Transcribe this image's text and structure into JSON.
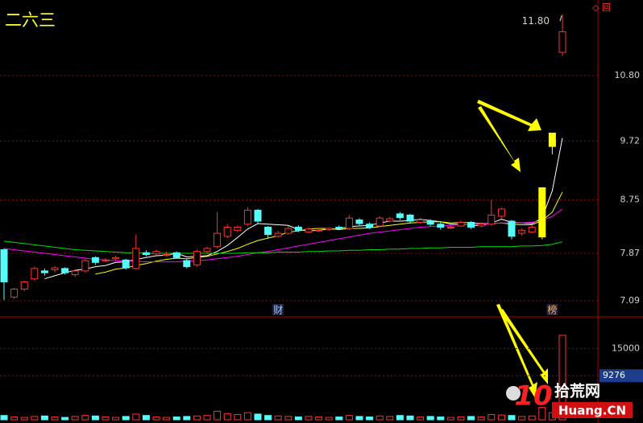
{
  "chart_data": [
    {
      "type": "candlestick",
      "title": "二六三",
      "open": [
        7.93,
        7.15,
        7.28,
        7.45,
        7.58,
        7.6,
        7.62,
        7.52,
        7.58,
        7.8,
        7.75,
        7.78,
        7.76,
        7.62,
        7.88,
        7.86,
        7.85,
        7.88,
        7.75,
        7.68,
        7.9,
        7.98,
        8.15,
        8.25,
        8.35,
        8.58,
        8.3,
        8.15,
        8.2,
        8.3,
        8.22,
        8.25,
        8.26,
        8.3,
        8.28,
        8.42,
        8.35,
        8.32,
        8.4,
        8.52,
        8.5,
        8.38,
        8.4,
        8.35,
        8.3,
        8.32,
        8.38,
        8.32,
        8.35,
        8.48,
        8.4,
        8.2,
        8.22,
        8.14,
        9.63,
        11.18
      ],
      "high": [
        7.95,
        7.3,
        7.42,
        7.65,
        7.62,
        7.66,
        7.64,
        7.6,
        7.78,
        7.82,
        7.79,
        7.83,
        7.78,
        8.18,
        7.92,
        7.93,
        7.9,
        7.9,
        7.78,
        7.93,
        7.98,
        8.55,
        8.35,
        8.33,
        8.63,
        8.6,
        8.32,
        8.24,
        8.32,
        8.33,
        8.3,
        8.29,
        8.3,
        8.33,
        8.5,
        8.45,
        8.38,
        8.48,
        8.47,
        8.55,
        8.52,
        8.45,
        8.43,
        8.38,
        8.34,
        8.41,
        8.4,
        8.38,
        8.75,
        8.62,
        8.42,
        8.28,
        8.33,
        8.95,
        9.85,
        11.8
      ],
      "low": [
        7.1,
        7.12,
        7.25,
        7.42,
        7.5,
        7.56,
        7.52,
        7.48,
        7.55,
        7.68,
        7.72,
        7.75,
        7.6,
        7.6,
        7.82,
        7.84,
        7.82,
        7.78,
        7.62,
        7.65,
        7.88,
        7.95,
        8.12,
        8.22,
        8.32,
        8.36,
        8.12,
        8.13,
        8.18,
        8.22,
        8.2,
        8.22,
        8.24,
        8.26,
        8.25,
        8.33,
        8.27,
        8.3,
        8.38,
        8.42,
        8.36,
        8.36,
        8.32,
        8.26,
        8.27,
        8.3,
        8.27,
        8.3,
        8.32,
        8.45,
        8.1,
        8.16,
        8.2,
        8.1,
        9.5,
        11.12
      ],
      "close": [
        7.4,
        7.28,
        7.4,
        7.62,
        7.55,
        7.63,
        7.55,
        7.58,
        7.75,
        7.72,
        7.76,
        7.8,
        7.63,
        7.95,
        7.85,
        7.9,
        7.85,
        7.8,
        7.65,
        7.9,
        7.95,
        8.2,
        8.3,
        8.3,
        8.58,
        8.4,
        8.18,
        8.2,
        8.28,
        8.25,
        8.27,
        8.25,
        8.28,
        8.28,
        8.45,
        8.36,
        8.3,
        8.45,
        8.44,
        8.46,
        8.4,
        8.42,
        8.35,
        8.3,
        8.3,
        8.38,
        8.3,
        8.35,
        8.5,
        8.6,
        8.15,
        8.25,
        8.3,
        8.95,
        9.85,
        11.52
      ],
      "up_color": "#ff3232",
      "down_color": "#54fcfc",
      "highlight_indices": [
        53,
        54
      ],
      "highlight_color": "#ffff00",
      "lines": [
        {
          "color": "#ffffff",
          "values": [
            null,
            null,
            null,
            null,
            7.45,
            7.5,
            7.55,
            7.59,
            7.61,
            7.65,
            7.67,
            7.72,
            7.73,
            7.77,
            7.8,
            7.83,
            7.84,
            7.87,
            7.81,
            7.82,
            7.83,
            7.9,
            8.0,
            8.13,
            8.27,
            8.36,
            8.35,
            8.34,
            8.33,
            8.26,
            8.24,
            8.25,
            8.27,
            8.27,
            8.31,
            8.32,
            8.33,
            8.37,
            8.4,
            8.4,
            8.41,
            8.43,
            8.41,
            8.39,
            8.35,
            8.35,
            8.33,
            8.33,
            8.37,
            8.43,
            8.38,
            8.37,
            8.36,
            8.45,
            8.9,
            9.77
          ]
        },
        {
          "color": "#ffff00",
          "values": [
            null,
            null,
            null,
            null,
            null,
            null,
            null,
            null,
            null,
            7.53,
            7.56,
            7.61,
            7.63,
            7.67,
            7.7,
            7.74,
            7.77,
            7.79,
            7.78,
            7.8,
            7.82,
            7.86,
            7.9,
            7.95,
            8.02,
            8.08,
            8.12,
            8.16,
            8.22,
            8.24,
            8.27,
            8.28,
            8.28,
            8.26,
            8.28,
            8.28,
            8.29,
            8.31,
            8.33,
            8.35,
            8.37,
            8.38,
            8.39,
            8.39,
            8.37,
            8.38,
            8.37,
            8.36,
            8.36,
            8.37,
            8.35,
            8.34,
            8.34,
            8.41,
            8.55,
            8.88
          ]
        },
        {
          "color": "#ff00ff",
          "values": [
            7.95,
            7.93,
            7.91,
            7.89,
            7.87,
            7.85,
            7.83,
            7.81,
            7.79,
            7.77,
            7.76,
            7.75,
            7.74,
            7.74,
            7.73,
            7.73,
            7.73,
            7.73,
            7.74,
            7.75,
            7.76,
            7.78,
            7.8,
            7.82,
            7.85,
            7.88,
            7.9,
            7.93,
            7.96,
            7.99,
            8.02,
            8.05,
            8.08,
            8.11,
            8.14,
            8.17,
            8.2,
            8.22,
            8.24,
            8.26,
            8.28,
            8.3,
            8.31,
            8.32,
            8.33,
            8.34,
            8.34,
            8.35,
            8.36,
            8.37,
            8.37,
            8.37,
            8.38,
            8.41,
            8.48,
            8.6
          ]
        },
        {
          "color": "#00e000",
          "values": [
            8.07,
            8.05,
            8.03,
            8.01,
            7.99,
            7.97,
            7.95,
            7.93,
            7.92,
            7.91,
            7.9,
            7.89,
            7.88,
            7.88,
            7.87,
            7.87,
            7.87,
            7.87,
            7.87,
            7.87,
            7.87,
            7.87,
            7.87,
            7.87,
            7.88,
            7.88,
            7.88,
            7.89,
            7.89,
            7.89,
            7.9,
            7.9,
            7.91,
            7.91,
            7.92,
            7.92,
            7.93,
            7.93,
            7.94,
            7.94,
            7.95,
            7.95,
            7.96,
            7.96,
            7.97,
            7.97,
            7.97,
            7.98,
            7.98,
            7.98,
            7.98,
            7.99,
            7.99,
            8.0,
            8.02,
            8.06
          ]
        }
      ],
      "max_label": "11.80",
      "markers": [
        {
          "index": 27,
          "label": "财",
          "color": "#a8c8ff"
        },
        {
          "index": 54,
          "label": "榜",
          "color": "#ffb040"
        }
      ],
      "ylim": [
        6.85,
        11.95
      ],
      "yticks": [
        {
          "value": 10.8,
          "label": "10.80"
        },
        9.72,
        8.75,
        7.87,
        7.09
      ],
      "grid": true
    },
    {
      "type": "bar",
      "values": [
        900,
        600,
        500,
        700,
        800,
        600,
        500,
        700,
        900,
        800,
        600,
        500,
        700,
        1200,
        900,
        600,
        500,
        600,
        700,
        800,
        900,
        1800,
        1300,
        1100,
        1500,
        1200,
        900,
        800,
        700,
        600,
        700,
        600,
        500,
        600,
        900,
        700,
        600,
        800,
        700,
        900,
        800,
        600,
        700,
        600,
        500,
        600,
        700,
        600,
        1100,
        1000,
        900,
        700,
        800,
        2600,
        1500,
        17800
      ],
      "ylim": [
        0,
        21000
      ],
      "yticks": [
        15000
      ],
      "cursor_value": 9276,
      "grid": true
    }
  ],
  "watermark": {
    "logo": "10",
    "name": "拾荒网",
    "url": "Huang.CN"
  }
}
